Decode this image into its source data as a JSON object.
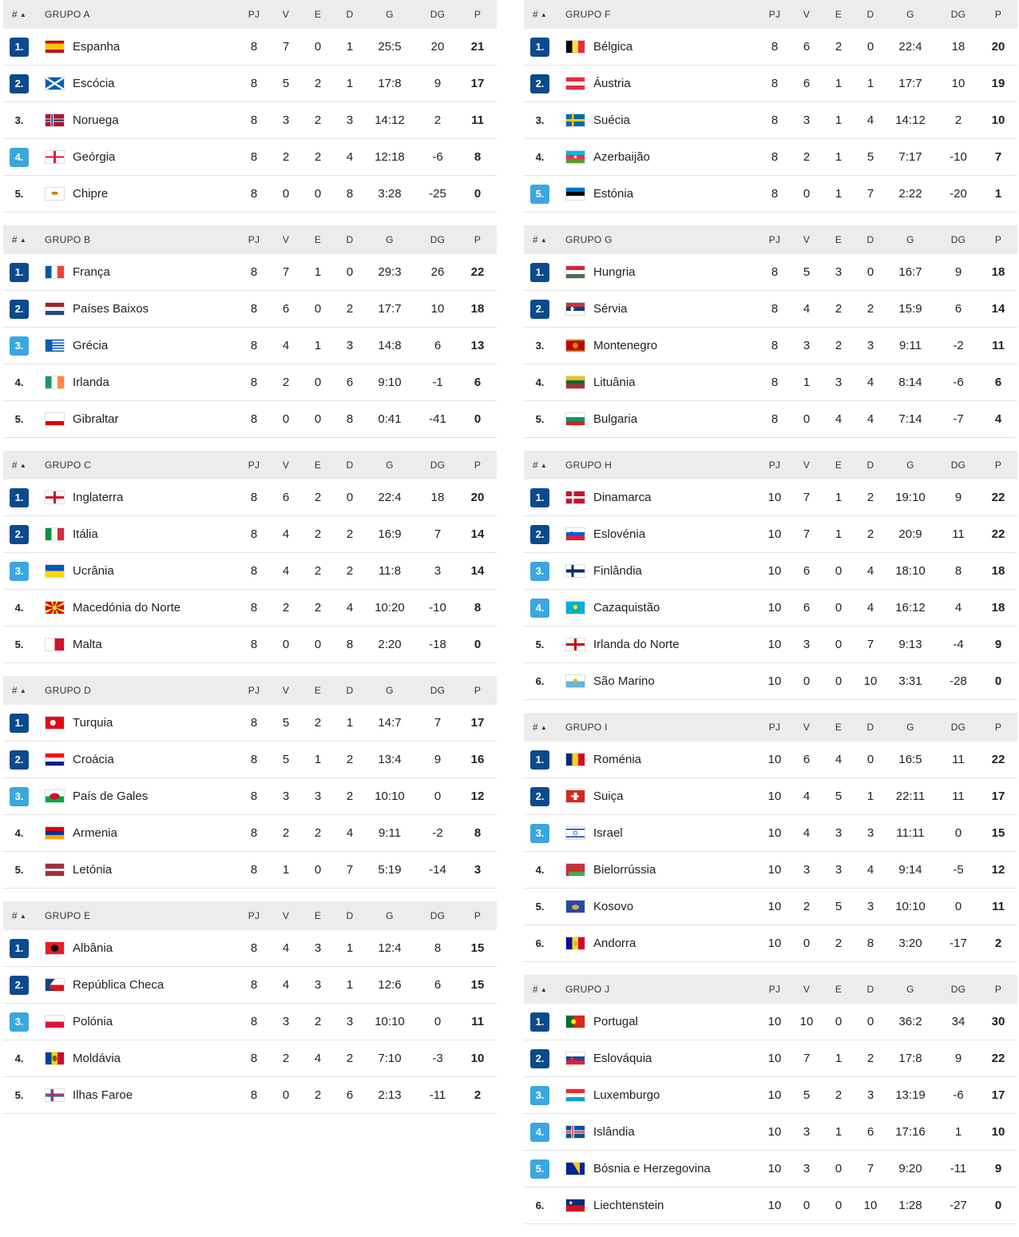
{
  "header_cols": {
    "rank": "#",
    "pj": "PJ",
    "v": "V",
    "e": "E",
    "d": "D",
    "g": "G",
    "dg": "DG",
    "p": "P"
  },
  "colors": {
    "qualified": "#0b4a8c",
    "playoff": "#3aa7e0",
    "header_bg": "#ececec"
  },
  "columns": [
    {
      "groups": [
        {
          "name": "GRUPO A",
          "teams": [
            {
              "pos": "1.",
              "badge": "dark",
              "flag": "espanha",
              "name": "Espanha",
              "pj": "8",
              "v": "7",
              "e": "0",
              "d": "1",
              "g": "25:5",
              "dg": "20",
              "p": "21"
            },
            {
              "pos": "2.",
              "badge": "dark",
              "flag": "escocia",
              "name": "Escócia",
              "pj": "8",
              "v": "5",
              "e": "2",
              "d": "1",
              "g": "17:8",
              "dg": "9",
              "p": "17"
            },
            {
              "pos": "3.",
              "badge": "plain",
              "flag": "noruega",
              "name": "Noruega",
              "pj": "8",
              "v": "3",
              "e": "2",
              "d": "3",
              "g": "14:12",
              "dg": "2",
              "p": "11"
            },
            {
              "pos": "4.",
              "badge": "light",
              "flag": "georgia",
              "name": "Geórgia",
              "pj": "8",
              "v": "2",
              "e": "2",
              "d": "4",
              "g": "12:18",
              "dg": "-6",
              "p": "8"
            },
            {
              "pos": "5.",
              "badge": "plain",
              "flag": "chipre",
              "name": "Chipre",
              "pj": "8",
              "v": "0",
              "e": "0",
              "d": "8",
              "g": "3:28",
              "dg": "-25",
              "p": "0"
            }
          ]
        },
        {
          "name": "GRUPO B",
          "teams": [
            {
              "pos": "1.",
              "badge": "dark",
              "flag": "franca",
              "name": "França",
              "pj": "8",
              "v": "7",
              "e": "1",
              "d": "0",
              "g": "29:3",
              "dg": "26",
              "p": "22"
            },
            {
              "pos": "2.",
              "badge": "dark",
              "flag": "paisesbaixos",
              "name": "Países Baixos",
              "pj": "8",
              "v": "6",
              "e": "0",
              "d": "2",
              "g": "17:7",
              "dg": "10",
              "p": "18"
            },
            {
              "pos": "3.",
              "badge": "light",
              "flag": "grecia",
              "name": "Grécia",
              "pj": "8",
              "v": "4",
              "e": "1",
              "d": "3",
              "g": "14:8",
              "dg": "6",
              "p": "13"
            },
            {
              "pos": "4.",
              "badge": "plain",
              "flag": "irlanda",
              "name": "Irlanda",
              "pj": "8",
              "v": "2",
              "e": "0",
              "d": "6",
              "g": "9:10",
              "dg": "-1",
              "p": "6"
            },
            {
              "pos": "5.",
              "badge": "plain",
              "flag": "gibraltar",
              "name": "Gibraltar",
              "pj": "8",
              "v": "0",
              "e": "0",
              "d": "8",
              "g": "0:41",
              "dg": "-41",
              "p": "0"
            }
          ]
        },
        {
          "name": "GRUPO C",
          "teams": [
            {
              "pos": "1.",
              "badge": "dark",
              "flag": "inglaterra",
              "name": "Inglaterra",
              "pj": "8",
              "v": "6",
              "e": "2",
              "d": "0",
              "g": "22:4",
              "dg": "18",
              "p": "20"
            },
            {
              "pos": "2.",
              "badge": "dark",
              "flag": "italia",
              "name": "Itália",
              "pj": "8",
              "v": "4",
              "e": "2",
              "d": "2",
              "g": "16:9",
              "dg": "7",
              "p": "14"
            },
            {
              "pos": "3.",
              "badge": "light",
              "flag": "ucrania",
              "name": "Ucrânia",
              "pj": "8",
              "v": "4",
              "e": "2",
              "d": "2",
              "g": "11:8",
              "dg": "3",
              "p": "14"
            },
            {
              "pos": "4.",
              "badge": "plain",
              "flag": "macedonia",
              "name": "Macedónia do Norte",
              "pj": "8",
              "v": "2",
              "e": "2",
              "d": "4",
              "g": "10:20",
              "dg": "-10",
              "p": "8"
            },
            {
              "pos": "5.",
              "badge": "plain",
              "flag": "malta",
              "name": "Malta",
              "pj": "8",
              "v": "0",
              "e": "0",
              "d": "8",
              "g": "2:20",
              "dg": "-18",
              "p": "0"
            }
          ]
        },
        {
          "name": "GRUPO D",
          "teams": [
            {
              "pos": "1.",
              "badge": "dark",
              "flag": "turquia",
              "name": "Turquia",
              "pj": "8",
              "v": "5",
              "e": "2",
              "d": "1",
              "g": "14:7",
              "dg": "7",
              "p": "17"
            },
            {
              "pos": "2.",
              "badge": "dark",
              "flag": "croacia",
              "name": "Croácia",
              "pj": "8",
              "v": "5",
              "e": "1",
              "d": "2",
              "g": "13:4",
              "dg": "9",
              "p": "16"
            },
            {
              "pos": "3.",
              "badge": "light",
              "flag": "gales",
              "name": "País de Gales",
              "pj": "8",
              "v": "3",
              "e": "3",
              "d": "2",
              "g": "10:10",
              "dg": "0",
              "p": "12"
            },
            {
              "pos": "4.",
              "badge": "plain",
              "flag": "armenia",
              "name": "Armenia",
              "pj": "8",
              "v": "2",
              "e": "2",
              "d": "4",
              "g": "9:11",
              "dg": "-2",
              "p": "8"
            },
            {
              "pos": "5.",
              "badge": "plain",
              "flag": "letonia",
              "name": "Letónia",
              "pj": "8",
              "v": "1",
              "e": "0",
              "d": "7",
              "g": "5:19",
              "dg": "-14",
              "p": "3"
            }
          ]
        },
        {
          "name": "GRUPO E",
          "teams": [
            {
              "pos": "1.",
              "badge": "dark",
              "flag": "albania",
              "name": "Albânia",
              "pj": "8",
              "v": "4",
              "e": "3",
              "d": "1",
              "g": "12:4",
              "dg": "8",
              "p": "15"
            },
            {
              "pos": "2.",
              "badge": "dark",
              "flag": "checa",
              "name": "República Checa",
              "pj": "8",
              "v": "4",
              "e": "3",
              "d": "1",
              "g": "12:6",
              "dg": "6",
              "p": "15"
            },
            {
              "pos": "3.",
              "badge": "light",
              "flag": "polonia",
              "name": "Polónia",
              "pj": "8",
              "v": "3",
              "e": "2",
              "d": "3",
              "g": "10:10",
              "dg": "0",
              "p": "11"
            },
            {
              "pos": "4.",
              "badge": "plain",
              "flag": "moldavia",
              "name": "Moldávia",
              "pj": "8",
              "v": "2",
              "e": "4",
              "d": "2",
              "g": "7:10",
              "dg": "-3",
              "p": "10"
            },
            {
              "pos": "5.",
              "badge": "plain",
              "flag": "faroe",
              "name": "Ilhas Faroe",
              "pj": "8",
              "v": "0",
              "e": "2",
              "d": "6",
              "g": "2:13",
              "dg": "-11",
              "p": "2"
            }
          ]
        }
      ]
    },
    {
      "groups": [
        {
          "name": "GRUPO F",
          "teams": [
            {
              "pos": "1.",
              "badge": "dark",
              "flag": "belgica",
              "name": "Bélgica",
              "pj": "8",
              "v": "6",
              "e": "2",
              "d": "0",
              "g": "22:4",
              "dg": "18",
              "p": "20"
            },
            {
              "pos": "2.",
              "badge": "dark",
              "flag": "austria",
              "name": "Áustria",
              "pj": "8",
              "v": "6",
              "e": "1",
              "d": "1",
              "g": "17:7",
              "dg": "10",
              "p": "19"
            },
            {
              "pos": "3.",
              "badge": "plain",
              "flag": "suecia",
              "name": "Suécia",
              "pj": "8",
              "v": "3",
              "e": "1",
              "d": "4",
              "g": "14:12",
              "dg": "2",
              "p": "10"
            },
            {
              "pos": "4.",
              "badge": "plain",
              "flag": "azerbaijao",
              "name": "Azerbaijão",
              "pj": "8",
              "v": "2",
              "e": "1",
              "d": "5",
              "g": "7:17",
              "dg": "-10",
              "p": "7"
            },
            {
              "pos": "5.",
              "badge": "light",
              "flag": "estonia",
              "name": "Estónia",
              "pj": "8",
              "v": "0",
              "e": "1",
              "d": "7",
              "g": "2:22",
              "dg": "-20",
              "p": "1"
            }
          ]
        },
        {
          "name": "GRUPO G",
          "teams": [
            {
              "pos": "1.",
              "badge": "dark",
              "flag": "hungria",
              "name": "Hungria",
              "pj": "8",
              "v": "5",
              "e": "3",
              "d": "0",
              "g": "16:7",
              "dg": "9",
              "p": "18"
            },
            {
              "pos": "2.",
              "badge": "dark",
              "flag": "servia",
              "name": "Sérvia",
              "pj": "8",
              "v": "4",
              "e": "2",
              "d": "2",
              "g": "15:9",
              "dg": "6",
              "p": "14"
            },
            {
              "pos": "3.",
              "badge": "plain",
              "flag": "montenegro",
              "name": "Montenegro",
              "pj": "8",
              "v": "3",
              "e": "2",
              "d": "3",
              "g": "9:11",
              "dg": "-2",
              "p": "11"
            },
            {
              "pos": "4.",
              "badge": "plain",
              "flag": "lituania",
              "name": "Lituânia",
              "pj": "8",
              "v": "1",
              "e": "3",
              "d": "4",
              "g": "8:14",
              "dg": "-6",
              "p": "6"
            },
            {
              "pos": "5.",
              "badge": "plain",
              "flag": "bulgaria",
              "name": "Bulgaria",
              "pj": "8",
              "v": "0",
              "e": "4",
              "d": "4",
              "g": "7:14",
              "dg": "-7",
              "p": "4"
            }
          ]
        },
        {
          "name": "GRUPO H",
          "teams": [
            {
              "pos": "1.",
              "badge": "dark",
              "flag": "dinamarca",
              "name": "Dinamarca",
              "pj": "10",
              "v": "7",
              "e": "1",
              "d": "2",
              "g": "19:10",
              "dg": "9",
              "p": "22"
            },
            {
              "pos": "2.",
              "badge": "dark",
              "flag": "eslovenia",
              "name": "Eslovénia",
              "pj": "10",
              "v": "7",
              "e": "1",
              "d": "2",
              "g": "20:9",
              "dg": "11",
              "p": "22"
            },
            {
              "pos": "3.",
              "badge": "light",
              "flag": "finlandia",
              "name": "Finlândia",
              "pj": "10",
              "v": "6",
              "e": "0",
              "d": "4",
              "g": "18:10",
              "dg": "8",
              "p": "18"
            },
            {
              "pos": "4.",
              "badge": "light",
              "flag": "cazaquistao",
              "name": "Cazaquistão",
              "pj": "10",
              "v": "6",
              "e": "0",
              "d": "4",
              "g": "16:12",
              "dg": "4",
              "p": "18"
            },
            {
              "pos": "5.",
              "badge": "plain",
              "flag": "irlandanorte",
              "name": "Irlanda do Norte",
              "pj": "10",
              "v": "3",
              "e": "0",
              "d": "7",
              "g": "9:13",
              "dg": "-4",
              "p": "9"
            },
            {
              "pos": "6.",
              "badge": "plain",
              "flag": "saomarino",
              "name": "São Marino",
              "pj": "10",
              "v": "0",
              "e": "0",
              "d": "10",
              "g": "3:31",
              "dg": "-28",
              "p": "0"
            }
          ]
        },
        {
          "name": "GRUPO I",
          "teams": [
            {
              "pos": "1.",
              "badge": "dark",
              "flag": "romenia",
              "name": "Roménia",
              "pj": "10",
              "v": "6",
              "e": "4",
              "d": "0",
              "g": "16:5",
              "dg": "11",
              "p": "22"
            },
            {
              "pos": "2.",
              "badge": "dark",
              "flag": "suica",
              "name": "Suiça",
              "pj": "10",
              "v": "4",
              "e": "5",
              "d": "1",
              "g": "22:11",
              "dg": "11",
              "p": "17"
            },
            {
              "pos": "3.",
              "badge": "light",
              "flag": "israel",
              "name": "Israel",
              "pj": "10",
              "v": "4",
              "e": "3",
              "d": "3",
              "g": "11:11",
              "dg": "0",
              "p": "15"
            },
            {
              "pos": "4.",
              "badge": "plain",
              "flag": "bielorrussia",
              "name": "Bielorrússia",
              "pj": "10",
              "v": "3",
              "e": "3",
              "d": "4",
              "g": "9:14",
              "dg": "-5",
              "p": "12"
            },
            {
              "pos": "5.",
              "badge": "plain",
              "flag": "kosovo",
              "name": "Kosovo",
              "pj": "10",
              "v": "2",
              "e": "5",
              "d": "3",
              "g": "10:10",
              "dg": "0",
              "p": "11"
            },
            {
              "pos": "6.",
              "badge": "plain",
              "flag": "andorra",
              "name": "Andorra",
              "pj": "10",
              "v": "0",
              "e": "2",
              "d": "8",
              "g": "3:20",
              "dg": "-17",
              "p": "2"
            }
          ]
        },
        {
          "name": "GRUPO J",
          "teams": [
            {
              "pos": "1.",
              "badge": "dark",
              "flag": "portugal",
              "name": "Portugal",
              "pj": "10",
              "v": "10",
              "e": "0",
              "d": "0",
              "g": "36:2",
              "dg": "34",
              "p": "30"
            },
            {
              "pos": "2.",
              "badge": "dark",
              "flag": "eslovaquia",
              "name": "Eslováquia",
              "pj": "10",
              "v": "7",
              "e": "1",
              "d": "2",
              "g": "17:8",
              "dg": "9",
              "p": "22"
            },
            {
              "pos": "3.",
              "badge": "light",
              "flag": "luxemburgo",
              "name": "Luxemburgo",
              "pj": "10",
              "v": "5",
              "e": "2",
              "d": "3",
              "g": "13:19",
              "dg": "-6",
              "p": "17"
            },
            {
              "pos": "4.",
              "badge": "light",
              "flag": "islandia",
              "name": "Islândia",
              "pj": "10",
              "v": "3",
              "e": "1",
              "d": "6",
              "g": "17:16",
              "dg": "1",
              "p": "10"
            },
            {
              "pos": "5.",
              "badge": "light",
              "flag": "bosnia",
              "name": "Bósnia e Herzegovina",
              "pj": "10",
              "v": "3",
              "e": "0",
              "d": "7",
              "g": "9:20",
              "dg": "-11",
              "p": "9"
            },
            {
              "pos": "6.",
              "badge": "plain",
              "flag": "liechtenstein",
              "name": "Liechtenstein",
              "pj": "10",
              "v": "0",
              "e": "0",
              "d": "10",
              "g": "1:28",
              "dg": "-27",
              "p": "0"
            }
          ]
        }
      ]
    }
  ]
}
